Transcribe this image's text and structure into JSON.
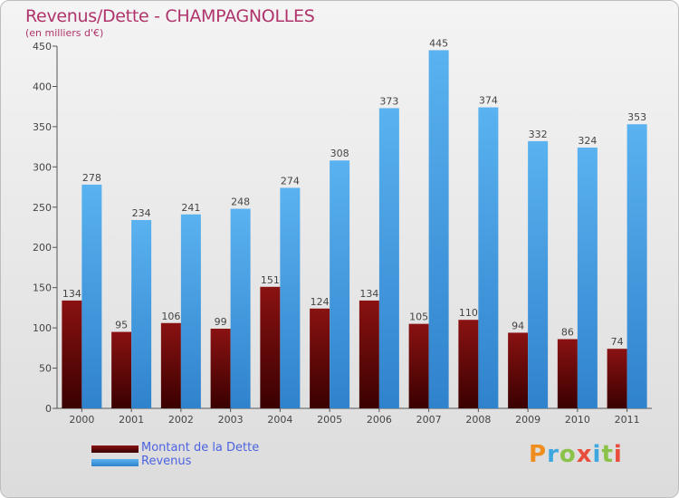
{
  "chart_data": {
    "type": "bar",
    "title": "Revenus/Dette - CHAMPAGNOLLES",
    "subtitle": "(en milliers d'€)",
    "xlabel": "",
    "ylabel": "",
    "ylim": [
      0,
      450
    ],
    "yticks": [
      0,
      50,
      100,
      150,
      200,
      250,
      300,
      350,
      400,
      450
    ],
    "categories": [
      "2000",
      "2001",
      "2002",
      "2003",
      "2004",
      "2005",
      "2006",
      "2007",
      "2008",
      "2009",
      "2010",
      "2011"
    ],
    "series": [
      {
        "name": "Montant de la Dette",
        "color": "#6b0a0a",
        "values": [
          134,
          95,
          106,
          99,
          151,
          124,
          134,
          105,
          110,
          94,
          86,
          74
        ]
      },
      {
        "name": "Revenus",
        "color": "#4aa3e6",
        "values": [
          278,
          234,
          241,
          248,
          274,
          308,
          373,
          445,
          374,
          332,
          324,
          353
        ]
      }
    ],
    "grid": false,
    "legend_position": "bottom-left"
  },
  "logo": {
    "text": "Proxiti"
  }
}
